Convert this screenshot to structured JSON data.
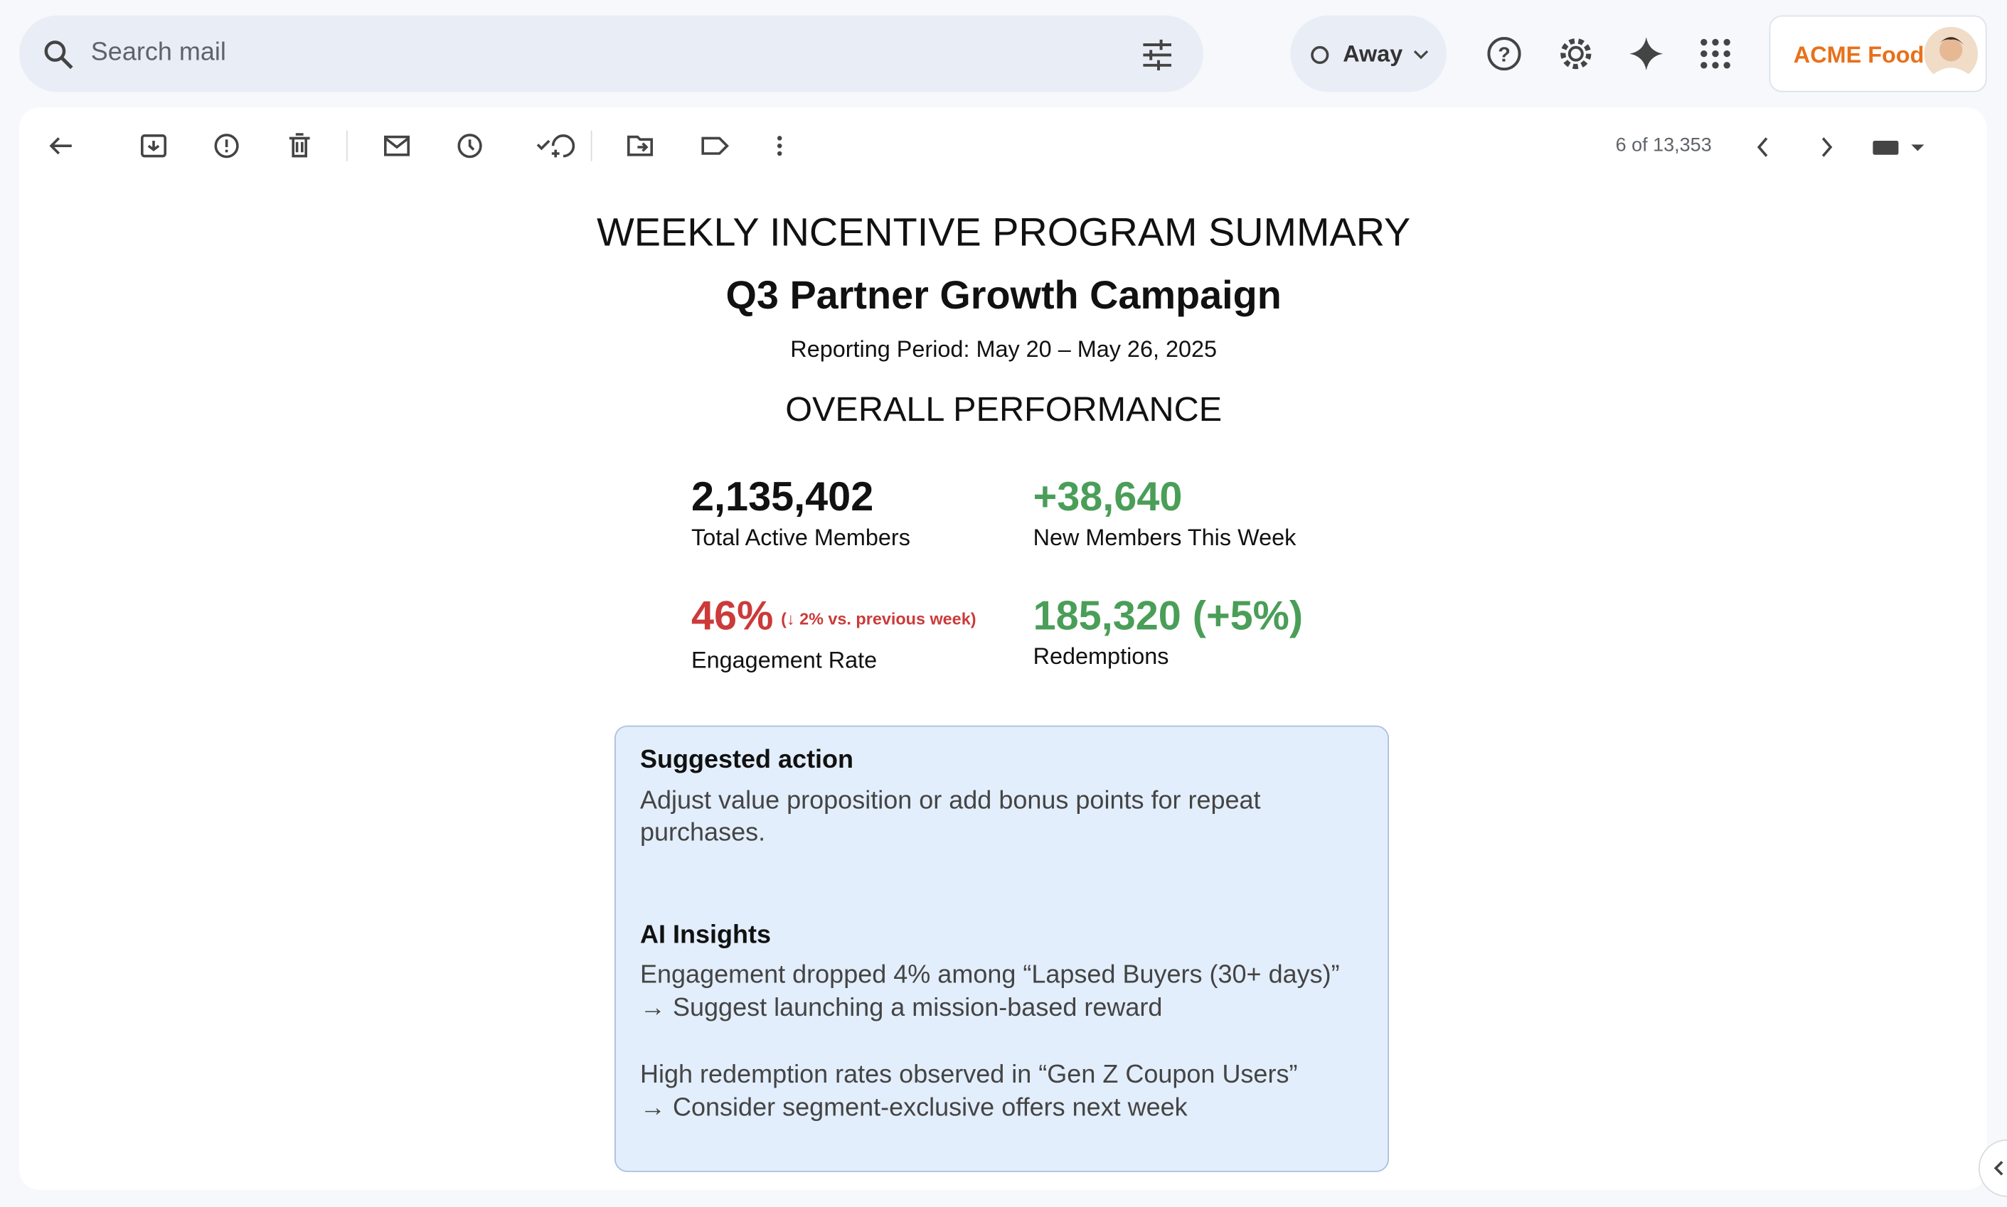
{
  "search": {
    "placeholder": "Search mail"
  },
  "status": "Away",
  "account": "ACME Food",
  "toolbar": {
    "pagination": "6 of 13,353"
  },
  "email": {
    "title": "WEEKLY INCENTIVE PROGRAM SUMMARY",
    "subtitle": "Q3 Partner Growth Campaign",
    "period": "Reporting Period: May 20 – May 26, 2025",
    "section": "OVERALL PERFORMANCE",
    "metrics": [
      {
        "value": "2,135,402",
        "label": "Total Active Members"
      },
      {
        "value": "+38,640",
        "label": "New Members This Week"
      },
      {
        "value": "46%",
        "note": "(↓ 2% vs. previous week)",
        "label": "Engagement Rate"
      },
      {
        "value": "185,320 (+5%)",
        "label": "Redemptions"
      }
    ],
    "suggested": {
      "heading": "Suggested action",
      "text": "Adjust value proposition or add bonus points for repeat purchases."
    },
    "insights": {
      "heading": "AI Insights",
      "items": [
        {
          "finding": "Engagement dropped 4% among “Lapsed Buyers (30+ days)”",
          "action": "→ Suggest launching a mission-based reward"
        },
        {
          "finding": "High redemption rates observed in “Gen Z Coupon Users”",
          "action": "→ Consider segment-exclusive offers next week"
        }
      ]
    }
  }
}
